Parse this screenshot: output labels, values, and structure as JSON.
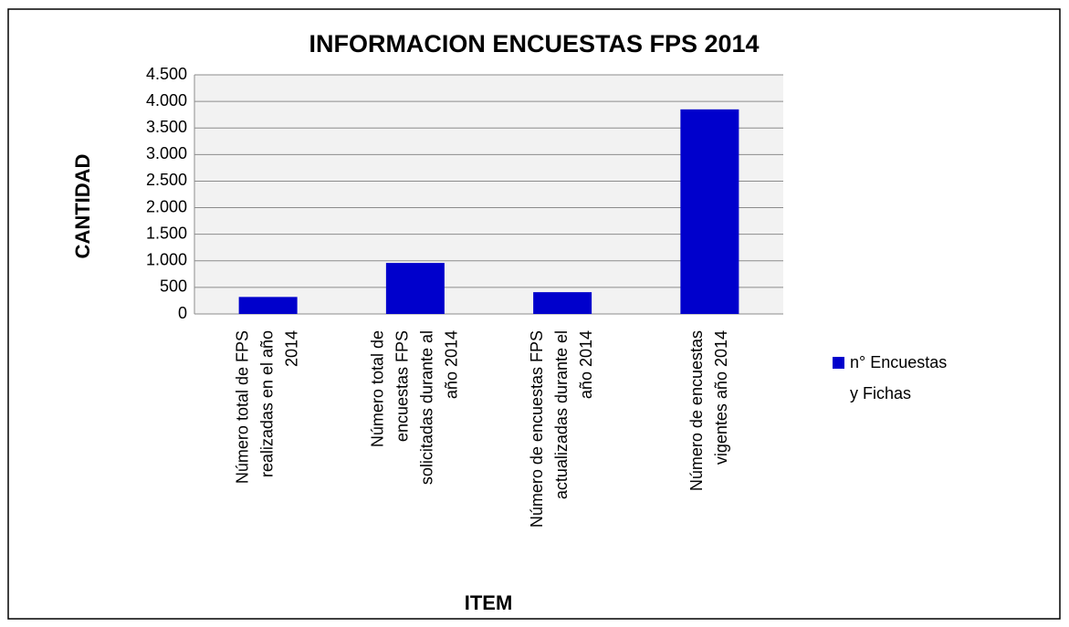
{
  "chart_data": {
    "type": "bar",
    "title": "INFORMACION ENCUESTAS FPS 2014",
    "y_label": "CANTIDAD",
    "x_label": "ITEM",
    "categories": [
      "Número total de FPS realizadas en el año 2014",
      "Número total de encuestas FPS solicitadas durante al año 2014",
      "Número de encuestas FPS actualizadas durante el año 2014",
      "Número de encuestas vigentes año 2014"
    ],
    "series": [
      {
        "name": "n° Encuestas y Fichas",
        "color": "#0000cc",
        "values": [
          320,
          960,
          410,
          3850
        ]
      }
    ],
    "ylim": [
      0,
      4500
    ],
    "yticks": [
      0,
      500,
      {
        "value": 1000,
        "label": "1.000"
      },
      {
        "value": 1500,
        "label": "1.500"
      },
      {
        "value": 2000,
        "label": "2.000"
      },
      {
        "value": 2500,
        "label": "2.500"
      },
      {
        "value": 3000,
        "label": "3.000"
      },
      {
        "value": 3500,
        "label": "3.500"
      },
      {
        "value": 4000,
        "label": "4.000"
      },
      {
        "value": 4500,
        "label": "4.500"
      }
    ],
    "grid": true,
    "legend": "right"
  }
}
